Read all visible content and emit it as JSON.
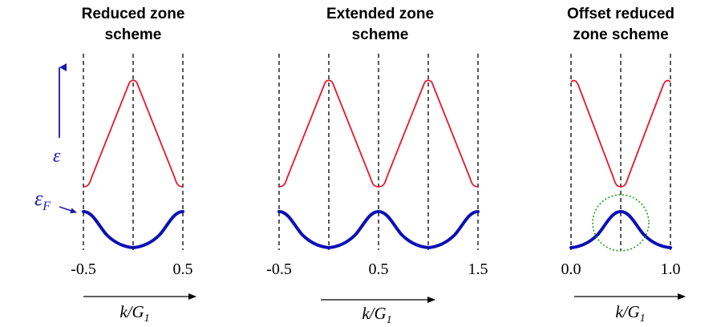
{
  "panels": [
    {
      "title_line1": "Reduced zone",
      "title_line2": "scheme",
      "ticks": [
        "-0.5",
        "0.5"
      ],
      "k_label": "k/G",
      "k_sub": "1"
    },
    {
      "title_line1": "Extended  zone",
      "title_line2": "scheme",
      "ticks": [
        "-0.5",
        "0.5",
        "1.5"
      ],
      "k_label": "k/G",
      "k_sub": "1"
    },
    {
      "title_line1": "Offset reduced",
      "title_line2": "zone scheme",
      "ticks": [
        "0.0",
        "1.0"
      ],
      "k_label": "k/G",
      "k_sub": "1"
    }
  ],
  "energy_axis": {
    "symbol": "ε"
  },
  "fermi_level": {
    "symbol": "ε",
    "sub": "F"
  },
  "colors": {
    "upper_band": "#e8162c",
    "lower_band": "#0a10b4",
    "highlight_circle": "#18a018",
    "energy_arrow": "#1a1ab0"
  }
}
